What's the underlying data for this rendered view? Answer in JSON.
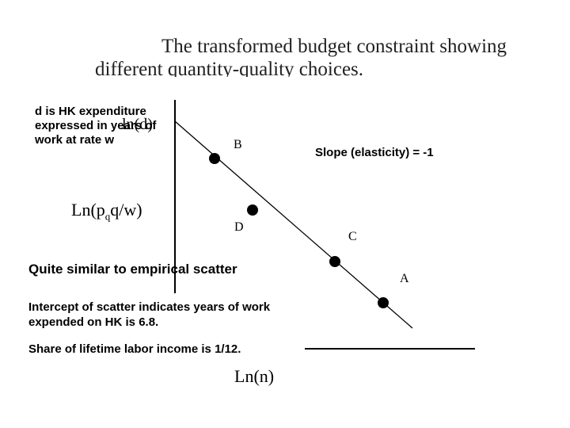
{
  "title": {
    "line1": "The transformed budget constraint showing",
    "line2": "different quantity-quality choices."
  },
  "axes": {
    "y_label_top": "ln(d)",
    "y_label_main": "Ln(p",
    "y_label_main_sub": "q",
    "y_label_main_end": "q/w)",
    "x_label": "Ln(n)"
  },
  "annotations": {
    "d_note": "d is HK expenditure expressed in years of work at rate w",
    "slope": "Slope (elasticity) = -1",
    "similar": "Quite similar to empirical scatter",
    "intercept": "Intercept of scatter indicates years of work expended on HK is 6.8.",
    "share": "Share of lifetime labor income is 1/12."
  },
  "points": {
    "B": "B",
    "D": "D",
    "C": "C",
    "A": "A"
  }
}
